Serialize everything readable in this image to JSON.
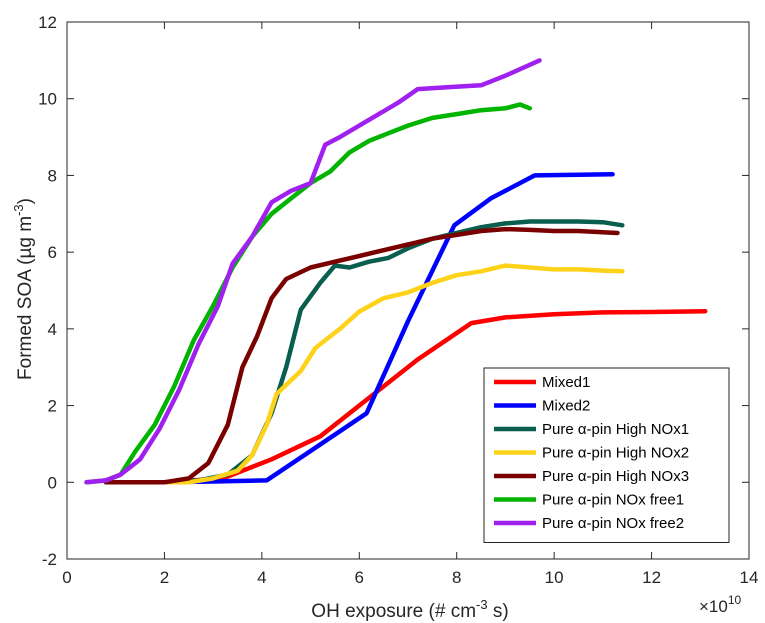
{
  "chart_data": {
    "type": "line",
    "title": "",
    "xlabel": "OH exposure (# cm",
    "xlabel_sup": "-3",
    "xlabel_tail": " s)",
    "ylabel": "Formed SOA (µg m",
    "ylabel_sup": "-3",
    "ylabel_tail": ")",
    "x_multiplier": "×10",
    "x_multiplier_exp": "10",
    "xlim": [
      0,
      14
    ],
    "ylim": [
      -2,
      12
    ],
    "xticks": [
      "0",
      "2",
      "4",
      "6",
      "8",
      "10",
      "12",
      "14"
    ],
    "yticks": [
      "-2",
      "0",
      "2",
      "4",
      "6",
      "8",
      "10",
      "12"
    ],
    "grid": false,
    "legend_position": "bottom-right",
    "series": [
      {
        "name": "Mixed1",
        "color": "#ff0000",
        "points": [
          [
            0.8,
            0
          ],
          [
            2.0,
            0
          ],
          [
            3.2,
            0.1
          ],
          [
            4.2,
            0.6
          ],
          [
            5.2,
            1.2
          ],
          [
            6.2,
            2.2
          ],
          [
            7.2,
            3.2
          ],
          [
            8.3,
            4.15
          ],
          [
            9.0,
            4.3
          ],
          [
            10.0,
            4.38
          ],
          [
            11.0,
            4.43
          ],
          [
            12.0,
            4.44
          ],
          [
            13.1,
            4.46
          ]
        ]
      },
      {
        "name": "Mixed2",
        "color": "#0000ff",
        "points": [
          [
            0.8,
            0
          ],
          [
            2.0,
            0
          ],
          [
            3.0,
            0.02
          ],
          [
            4.1,
            0.05
          ],
          [
            5.1,
            0.9
          ],
          [
            6.15,
            1.8
          ],
          [
            7.0,
            4.2
          ],
          [
            7.95,
            6.7
          ],
          [
            8.7,
            7.4
          ],
          [
            9.6,
            8.0
          ],
          [
            10.5,
            8.02
          ],
          [
            11.2,
            8.03
          ]
        ]
      },
      {
        "name": "Pure α-pin High NOx1",
        "color": "#0a5e4f",
        "points": [
          [
            0.8,
            0
          ],
          [
            2.0,
            0
          ],
          [
            2.7,
            0.05
          ],
          [
            3.3,
            0.2
          ],
          [
            3.8,
            0.7
          ],
          [
            4.2,
            1.8
          ],
          [
            4.5,
            3.0
          ],
          [
            4.8,
            4.5
          ],
          [
            5.2,
            5.2
          ],
          [
            5.5,
            5.65
          ],
          [
            5.8,
            5.6
          ],
          [
            6.2,
            5.75
          ],
          [
            6.6,
            5.85
          ],
          [
            7.0,
            6.1
          ],
          [
            7.5,
            6.35
          ],
          [
            8.0,
            6.5
          ],
          [
            8.5,
            6.65
          ],
          [
            9.0,
            6.75
          ],
          [
            9.5,
            6.8
          ],
          [
            10.0,
            6.8
          ],
          [
            10.5,
            6.8
          ],
          [
            11.0,
            6.78
          ],
          [
            11.4,
            6.7
          ]
        ]
      },
      {
        "name": "Pure α-pin High NOx2",
        "color": "#ffd21a",
        "points": [
          [
            1.8,
            0
          ],
          [
            2.5,
            0
          ],
          [
            3.0,
            0.1
          ],
          [
            3.5,
            0.3
          ],
          [
            3.8,
            0.7
          ],
          [
            4.1,
            1.5
          ],
          [
            4.3,
            2.3
          ],
          [
            4.8,
            2.9
          ],
          [
            5.1,
            3.5
          ],
          [
            5.6,
            4.0
          ],
          [
            6.0,
            4.45
          ],
          [
            6.5,
            4.8
          ],
          [
            7.0,
            4.95
          ],
          [
            7.5,
            5.2
          ],
          [
            8.0,
            5.4
          ],
          [
            8.5,
            5.5
          ],
          [
            9.0,
            5.65
          ],
          [
            9.5,
            5.6
          ],
          [
            10.0,
            5.55
          ],
          [
            10.5,
            5.55
          ],
          [
            11.0,
            5.52
          ],
          [
            11.4,
            5.5
          ]
        ]
      },
      {
        "name": "Pure α-pin High NOx3",
        "color": "#7a0000",
        "points": [
          [
            0.8,
            0
          ],
          [
            2.0,
            0
          ],
          [
            2.5,
            0.1
          ],
          [
            2.9,
            0.5
          ],
          [
            3.3,
            1.5
          ],
          [
            3.6,
            3.0
          ],
          [
            3.9,
            3.8
          ],
          [
            4.2,
            4.8
          ],
          [
            4.5,
            5.3
          ],
          [
            5.0,
            5.6
          ],
          [
            5.5,
            5.75
          ],
          [
            6.0,
            5.9
          ],
          [
            6.5,
            6.05
          ],
          [
            7.0,
            6.2
          ],
          [
            7.5,
            6.35
          ],
          [
            8.0,
            6.45
          ],
          [
            8.5,
            6.55
          ],
          [
            9.0,
            6.6
          ],
          [
            9.5,
            6.58
          ],
          [
            10.0,
            6.55
          ],
          [
            10.5,
            6.55
          ],
          [
            11.0,
            6.52
          ],
          [
            11.3,
            6.5
          ]
        ]
      },
      {
        "name": "Pure α-pin NOx free1",
        "color": "#00b400",
        "points": [
          [
            0.4,
            0
          ],
          [
            0.8,
            0.05
          ],
          [
            1.1,
            0.2
          ],
          [
            1.4,
            0.8
          ],
          [
            1.8,
            1.5
          ],
          [
            2.2,
            2.5
          ],
          [
            2.6,
            3.7
          ],
          [
            3.0,
            4.6
          ],
          [
            3.4,
            5.6
          ],
          [
            3.8,
            6.4
          ],
          [
            4.2,
            7.0
          ],
          [
            4.6,
            7.4
          ],
          [
            5.0,
            7.8
          ],
          [
            5.4,
            8.1
          ],
          [
            5.8,
            8.6
          ],
          [
            6.2,
            8.9
          ],
          [
            6.6,
            9.1
          ],
          [
            7.0,
            9.3
          ],
          [
            7.5,
            9.5
          ],
          [
            8.0,
            9.6
          ],
          [
            8.5,
            9.7
          ],
          [
            9.0,
            9.75
          ],
          [
            9.3,
            9.85
          ],
          [
            9.5,
            9.75
          ]
        ]
      },
      {
        "name": "Pure α-pin NOx free2",
        "color": "#a020f0",
        "points": [
          [
            0.4,
            0
          ],
          [
            0.8,
            0.05
          ],
          [
            1.1,
            0.2
          ],
          [
            1.5,
            0.6
          ],
          [
            1.9,
            1.4
          ],
          [
            2.3,
            2.4
          ],
          [
            2.7,
            3.6
          ],
          [
            3.1,
            4.6
          ],
          [
            3.4,
            5.7
          ],
          [
            3.8,
            6.4
          ],
          [
            4.2,
            7.3
          ],
          [
            4.6,
            7.6
          ],
          [
            5.0,
            7.8
          ],
          [
            5.3,
            8.8
          ],
          [
            5.6,
            9.0
          ],
          [
            6.0,
            9.3
          ],
          [
            6.4,
            9.6
          ],
          [
            6.8,
            9.9
          ],
          [
            7.2,
            10.25
          ],
          [
            7.8,
            10.3
          ],
          [
            8.5,
            10.35
          ],
          [
            9.0,
            10.6
          ],
          [
            9.7,
            11.0
          ]
        ]
      }
    ]
  }
}
